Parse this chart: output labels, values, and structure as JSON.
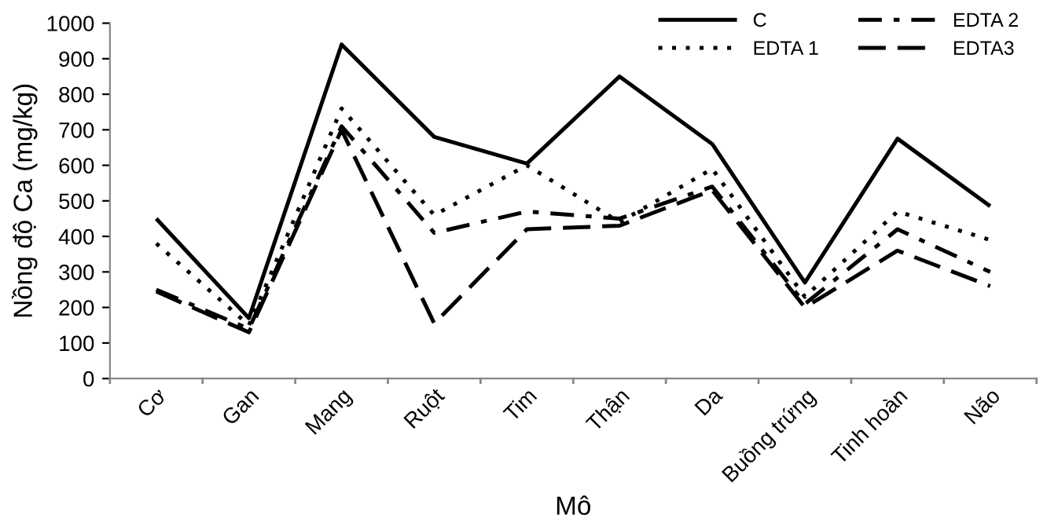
{
  "chart_data": {
    "type": "line",
    "xlabel": "Mô",
    "ylabel": "Nồng độ Ca (mg/kg)",
    "categories": [
      "Cơ",
      "Gan",
      "Mang",
      "Ruột",
      "Tim",
      "Thận",
      "Da",
      "Buồng trứng",
      "Tinh hoàn",
      "Não"
    ],
    "series": [
      {
        "name": "C",
        "color": "#000000",
        "line_style": "solid",
        "values": [
          450,
          170,
          940,
          680,
          605,
          850,
          660,
          270,
          675,
          485
        ]
      },
      {
        "name": "EDTA 1",
        "color": "#000000",
        "line_style": "dotted",
        "values": [
          380,
          150,
          760,
          460,
          600,
          440,
          590,
          230,
          470,
          390
        ]
      },
      {
        "name": "EDTA 2",
        "color": "#000000",
        "line_style": "dashdot",
        "values": [
          250,
          140,
          710,
          410,
          470,
          450,
          540,
          210,
          420,
          300
        ]
      },
      {
        "name": "EDTA3",
        "color": "#000000",
        "line_style": "dashed",
        "values": [
          245,
          130,
          700,
          155,
          420,
          430,
          530,
          200,
          360,
          260
        ]
      }
    ],
    "ylim": [
      0,
      1000
    ],
    "yticks": [
      0,
      100,
      200,
      300,
      400,
      500,
      600,
      700,
      800,
      900,
      1000
    ],
    "grid": false,
    "legend": "top right",
    "marker": "none"
  }
}
